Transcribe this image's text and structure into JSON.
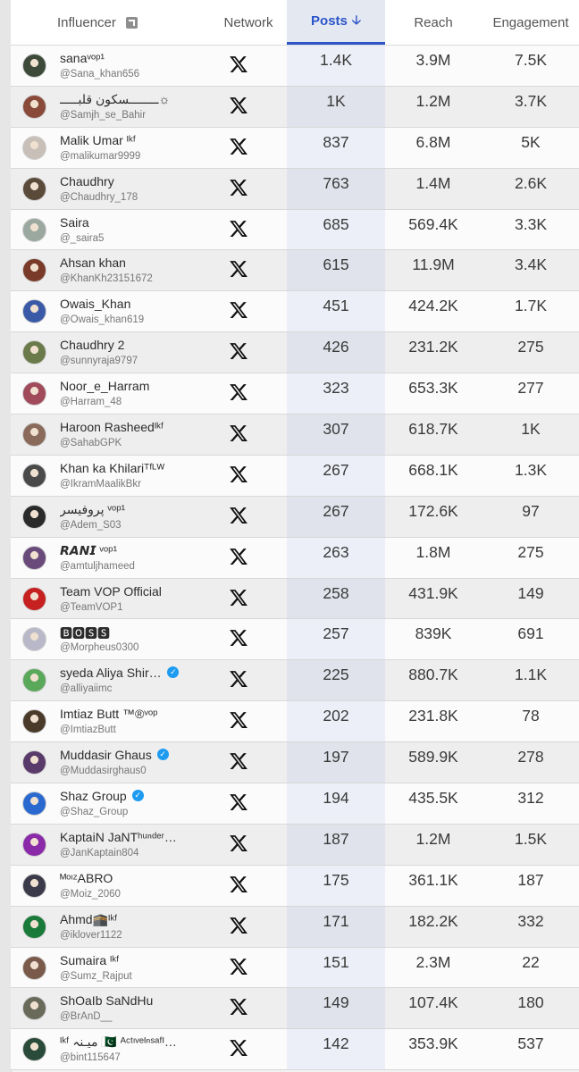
{
  "header": {
    "influencer": "Influencer",
    "network": "Network",
    "posts": "Posts",
    "reach": "Reach",
    "engagement": "Engagement"
  },
  "rows": [
    {
      "name": "sanaᵛᵒᵖ¹",
      "handle": "@Sana_khan656",
      "posts": "1.4K",
      "reach": "3.9M",
      "engagement": "7.5K",
      "verified": false,
      "avatar": "#3d4a3a"
    },
    {
      "name": "ــــــــسکون قلبـــــ☼",
      "handle": "@Samjh_se_Bahir",
      "posts": "1K",
      "reach": "1.2M",
      "engagement": "3.7K",
      "verified": false,
      "avatar": "#8a4a3a"
    },
    {
      "name": "Malik Umar ᴵᵏᶠ",
      "handle": "@malikumar9999",
      "posts": "837",
      "reach": "6.8M",
      "engagement": "5K",
      "verified": false,
      "avatar": "#c8c0b8"
    },
    {
      "name": "Chaudhry",
      "handle": "@Chaudhry_178",
      "posts": "763",
      "reach": "1.4M",
      "engagement": "2.6K",
      "verified": false,
      "avatar": "#5a4a3a"
    },
    {
      "name": "Saira",
      "handle": "@_saira5",
      "posts": "685",
      "reach": "569.4K",
      "engagement": "3.3K",
      "verified": false,
      "avatar": "#9aa8a0"
    },
    {
      "name": "Ahsan khan",
      "handle": "@KhanKh23151672",
      "posts": "615",
      "reach": "11.9M",
      "engagement": "3.4K",
      "verified": false,
      "avatar": "#7a3a2a"
    },
    {
      "name": "Owais_Khan",
      "handle": "@Owais_khan619",
      "posts": "451",
      "reach": "424.2K",
      "engagement": "1.7K",
      "verified": false,
      "avatar": "#3a5aa8"
    },
    {
      "name": "Chaudhry 2",
      "handle": "@sunnyraja9797",
      "posts": "426",
      "reach": "231.2K",
      "engagement": "275",
      "verified": false,
      "avatar": "#6a7a4a"
    },
    {
      "name": "Noor_e_Harram",
      "handle": "@Harram_48",
      "posts": "323",
      "reach": "653.3K",
      "engagement": "277",
      "verified": false,
      "avatar": "#a04a5a"
    },
    {
      "name": "Haroon Rasheedᴵᵏᶠ",
      "handle": "@SahabGPK",
      "posts": "307",
      "reach": "618.7K",
      "engagement": "1K",
      "verified": false,
      "avatar": "#8a6a5a"
    },
    {
      "name": "Khan ka Khilariᵀᶠᴸᵂ",
      "handle": "@IkramMaalikBkr",
      "posts": "267",
      "reach": "668.1K",
      "engagement": "1.3K",
      "verified": false,
      "avatar": "#4a4a4a"
    },
    {
      "name": "پروفیسر ᵛᵒᵖ¹",
      "handle": "@Adem_S03",
      "posts": "267",
      "reach": "172.6K",
      "engagement": "97",
      "verified": false,
      "avatar": "#2a2a2a"
    },
    {
      "name": "𝙍𝘼𝙉𝙄 ᵛᵒᵖ¹",
      "handle": "@amtuljhameed",
      "posts": "263",
      "reach": "1.8M",
      "engagement": "275",
      "verified": false,
      "avatar": "#6a4a7a"
    },
    {
      "name": "Team VOP Official",
      "handle": "@TeamVOP1",
      "posts": "258",
      "reach": "431.9K",
      "engagement": "149",
      "verified": false,
      "avatar": "#c62020"
    },
    {
      "name": "🅱🅾🆂🆂",
      "handle": "@Morpheus0300",
      "posts": "257",
      "reach": "839K",
      "engagement": "691",
      "verified": false,
      "avatar": "#b8b8c8"
    },
    {
      "name": "syeda Aliya Shir…",
      "handle": "@alliyaiimc",
      "posts": "225",
      "reach": "880.7K",
      "engagement": "1.1K",
      "verified": true,
      "avatar": "#5aa85a"
    },
    {
      "name": "Imtiaz Butt ™®ᵛᵒᵖ",
      "handle": "@ImtiazButt",
      "posts": "202",
      "reach": "231.8K",
      "engagement": "78",
      "verified": false,
      "avatar": "#4a3a2a"
    },
    {
      "name": "Muddasir Ghaus",
      "handle": "@Muddasirghaus0",
      "posts": "197",
      "reach": "589.9K",
      "engagement": "278",
      "verified": true,
      "avatar": "#5a3a6a"
    },
    {
      "name": "Shaz Group",
      "handle": "@Shaz_Group",
      "posts": "194",
      "reach": "435.5K",
      "engagement": "312",
      "verified": true,
      "avatar": "#2a6ad0"
    },
    {
      "name": "KaptaiN JaNTʰᵘⁿᵈᵉʳ…",
      "handle": "@JanKaptain804",
      "posts": "187",
      "reach": "1.2M",
      "engagement": "1.5K",
      "verified": false,
      "avatar": "#8a2aa8"
    },
    {
      "name": "ᴹᵒᶦᶻABRO",
      "handle": "@Moiz_2060",
      "posts": "175",
      "reach": "361.1K",
      "engagement": "187",
      "verified": false,
      "avatar": "#3a3a4a"
    },
    {
      "name": "Ahmd🕋ᴵᵏᶠ",
      "handle": "@iklover1122",
      "posts": "171",
      "reach": "182.2K",
      "engagement": "332",
      "verified": false,
      "avatar": "#1a7a3a"
    },
    {
      "name": "Sumaira ᴵᵏᶠ",
      "handle": "@Sumz_Rajput",
      "posts": "151",
      "reach": "2.3M",
      "engagement": "22",
      "verified": false,
      "avatar": "#7a5a4a"
    },
    {
      "name": "ShOaIb SaNdHu",
      "handle": "@BrAnD__",
      "posts": "149",
      "reach": "107.4K",
      "engagement": "180",
      "verified": false,
      "avatar": "#6a6a5a"
    },
    {
      "name": "ᴵᵏᶠ میـنہ 🇵🇰 ᴬᶜᵗᶦᵛᵉᴵⁿˢᵃᶠᴵ…",
      "handle": "@bint115647",
      "posts": "142",
      "reach": "353.9K",
      "engagement": "537",
      "verified": false,
      "avatar": "#2a4a3a"
    }
  ]
}
